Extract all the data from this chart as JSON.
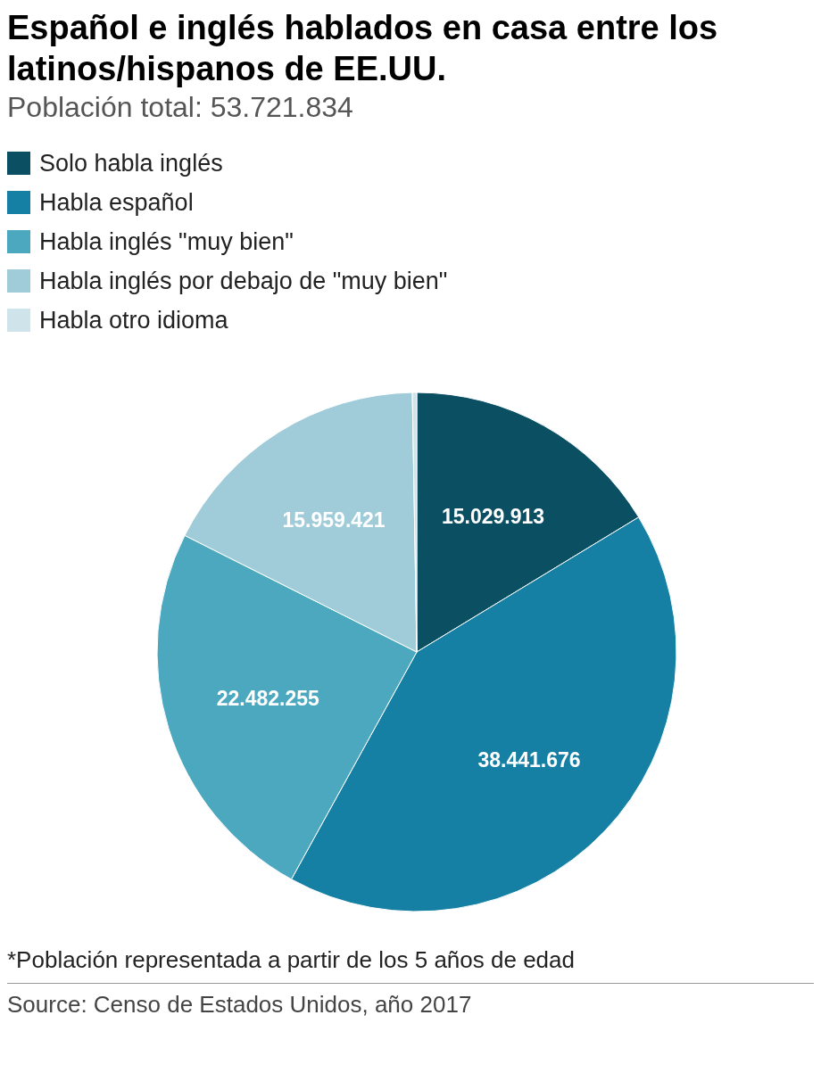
{
  "chart_data": {
    "type": "pie",
    "title": "Español e inglés hablados en casa entre los latinos/hispanos de EE.UU.",
    "subtitle": "Población total: 53.721.834",
    "categories": [
      "Solo habla inglés",
      "Habla español",
      "Habla inglés \"muy bien\"",
      "Habla inglés por debajo de \"muy bien\"",
      "Habla otro idioma"
    ],
    "values": [
      15029913,
      38441676,
      22482255,
      15959421,
      250000
    ],
    "colors": [
      "#0b4f63",
      "#1580a3",
      "#4ba8be",
      "#a0cbd9",
      "#cfe3ea"
    ],
    "value_labels": [
      "15.029.913",
      "38.441.676",
      "22.482.255",
      "15.959.421",
      null
    ],
    "legend": "top left",
    "annotations": [
      "*Población representada a partir de los 5 años de edad",
      "Source: Censo de Estados Unidos, año 2017"
    ]
  }
}
